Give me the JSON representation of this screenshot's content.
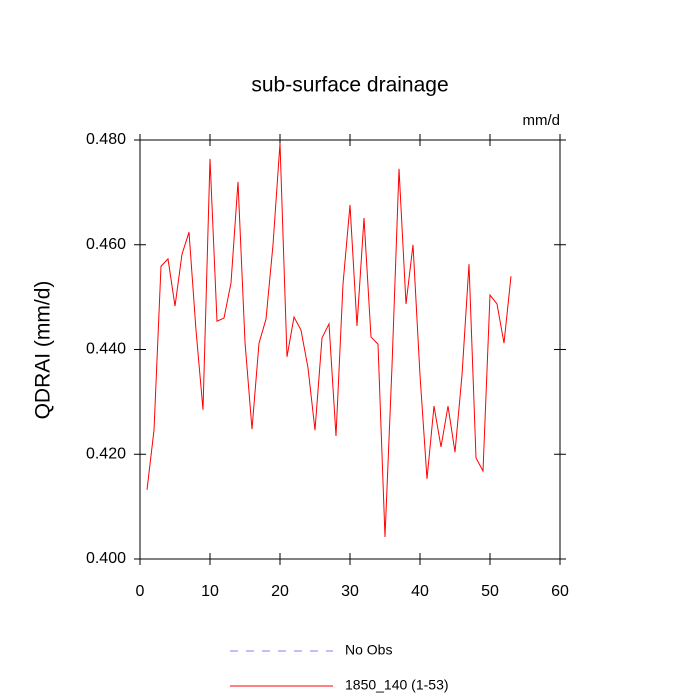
{
  "chart_data": {
    "type": "line",
    "title": "sub-surface drainage",
    "units": "mm/d",
    "y_label": "QDRAI  (mm/d)",
    "x": [
      1,
      2,
      3,
      4,
      5,
      6,
      7,
      8,
      9,
      10,
      11,
      12,
      13,
      14,
      15,
      16,
      17,
      18,
      19,
      20,
      21,
      22,
      23,
      24,
      25,
      26,
      27,
      28,
      29,
      30,
      31,
      32,
      33,
      34,
      35,
      36,
      37,
      38,
      39,
      40,
      41,
      42,
      43,
      44,
      45,
      46,
      47,
      48,
      49,
      50,
      51,
      52,
      53
    ],
    "series": [
      {
        "name": "1850_140 (1-53)",
        "color": "#ff0000",
        "values": [
          0.4132,
          0.4246,
          0.4559,
          0.4573,
          0.4483,
          0.4582,
          0.4624,
          0.4437,
          0.4285,
          0.4764,
          0.4454,
          0.446,
          0.4527,
          0.472,
          0.4414,
          0.4248,
          0.4412,
          0.4458,
          0.46,
          0.4794,
          0.4386,
          0.4462,
          0.4437,
          0.4365,
          0.4246,
          0.4422,
          0.4449,
          0.4235,
          0.4525,
          0.4676,
          0.4445,
          0.4651,
          0.4424,
          0.441,
          0.4042,
          0.4368,
          0.4745,
          0.4487,
          0.46,
          0.4351,
          0.4153,
          0.4292,
          0.4214,
          0.4292,
          0.4204,
          0.4351,
          0.4563,
          0.4193,
          0.4168,
          0.4504,
          0.4487,
          0.4412,
          0.454
        ]
      }
    ],
    "legend_extra": [
      {
        "name": "No Obs",
        "color": "#8080ff",
        "dash": "8 8"
      }
    ],
    "xlim": [
      0,
      60
    ],
    "xticks": [
      0,
      10,
      20,
      30,
      40,
      50,
      60
    ],
    "ylim": [
      0.4,
      0.48
    ],
    "yticks": [
      {
        "value": 0.4,
        "label": "0.400"
      },
      {
        "value": 0.42,
        "label": "0.420"
      },
      {
        "value": 0.44,
        "label": "0.440"
      },
      {
        "value": 0.46,
        "label": "0.460"
      },
      {
        "value": 0.48,
        "label": "0.480"
      }
    ]
  }
}
